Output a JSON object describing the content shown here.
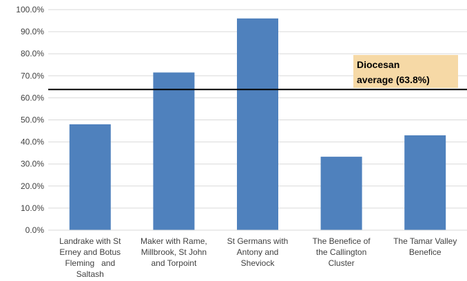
{
  "chart_data": {
    "type": "bar",
    "categories": [
      [
        "Landrake with St",
        "Erney and Botus",
        "Fleming   and",
        "Saltash"
      ],
      [
        "Maker with Rame,",
        "Millbrook, St John",
        "and Torpoint"
      ],
      [
        "St Germans with",
        "Antony and",
        "Sheviock"
      ],
      [
        "The Benefice of",
        "the Callington",
        "Cluster"
      ],
      [
        "The Tamar Valley",
        "Benefice"
      ]
    ],
    "values": [
      48.0,
      71.5,
      96.0,
      33.3,
      43.0
    ],
    "ylim": [
      0,
      100
    ],
    "ytick_step": 10,
    "ytick_labels": [
      "0.0%",
      "10.0%",
      "20.0%",
      "30.0%",
      "40.0%",
      "50.0%",
      "60.0%",
      "70.0%",
      "80.0%",
      "90.0%",
      "100.0%"
    ],
    "grid": true,
    "legend": "none",
    "reference_line": {
      "value": 63.8,
      "label": [
        "Diocesan",
        "average (63.8%)"
      ]
    },
    "colors": {
      "bar": "#4f81bd",
      "grid": "#d9d9d9",
      "reference_line": "#000000",
      "annotation_bg": "#f6d9a6"
    }
  }
}
